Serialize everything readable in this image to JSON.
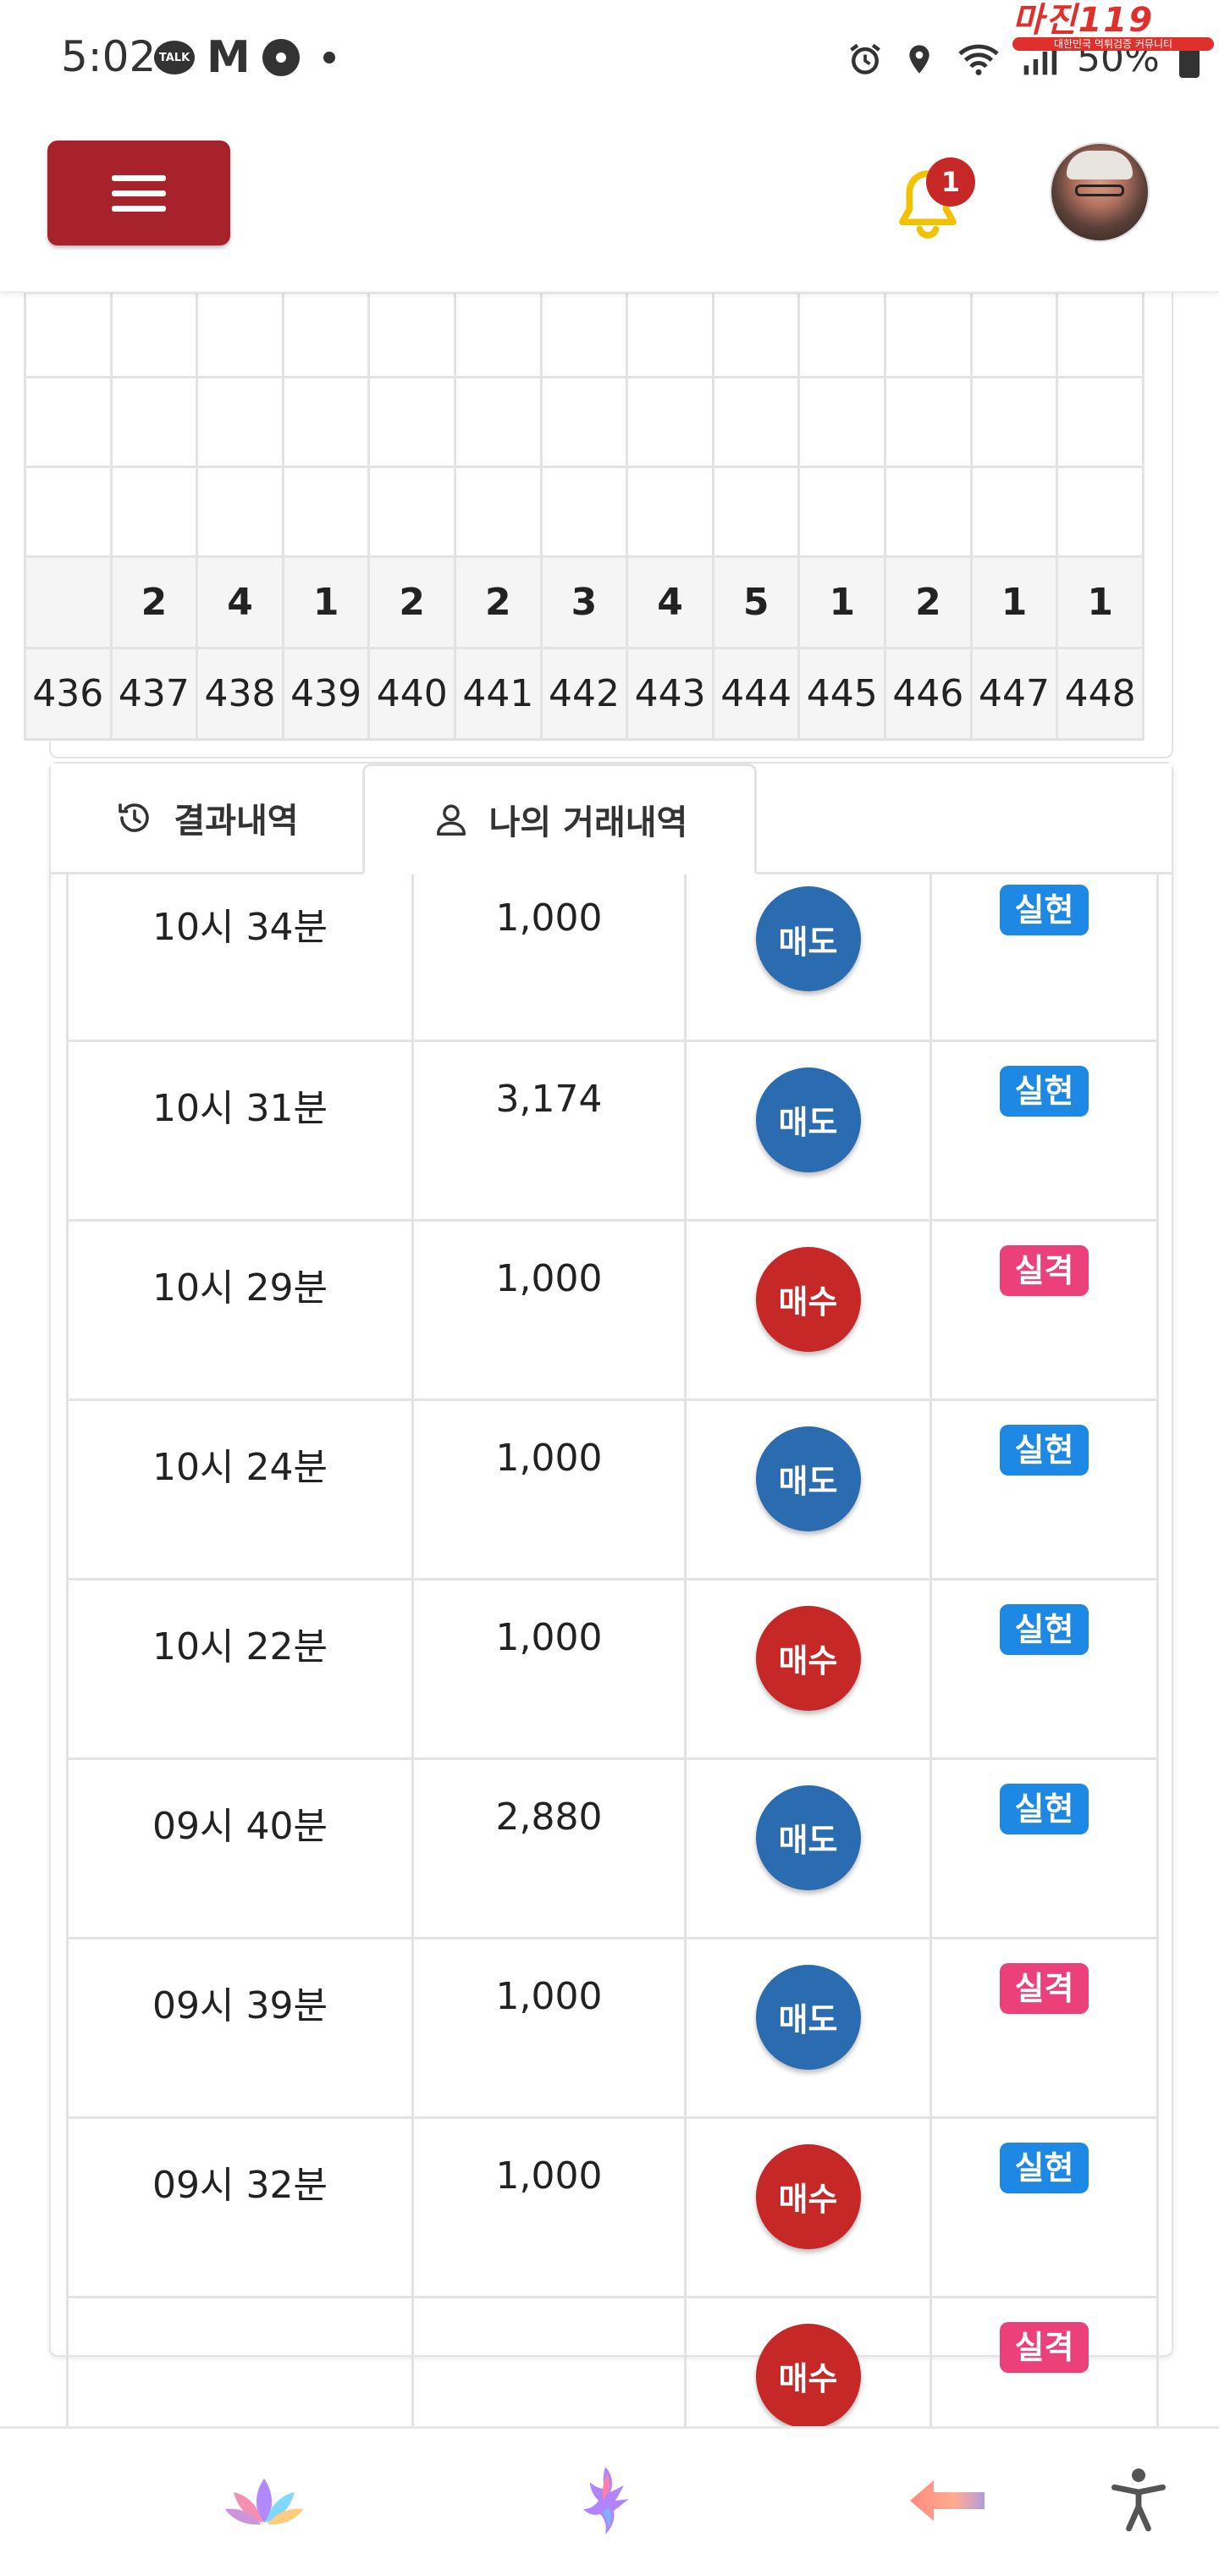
{
  "status_bar": {
    "time": "5:02",
    "talk_label": "TALK",
    "mail_letter": "M",
    "battery": "50%",
    "left_icons": [
      "kakaotalk-icon",
      "gmail-icon",
      "fan-icon",
      "dot-icon"
    ],
    "right_icons": [
      "alarm-icon",
      "location-icon",
      "wifi-icon",
      "signal-icon",
      "battery-icon"
    ]
  },
  "watermark": {
    "title": "마진119",
    "subtitle": "대한민국 먹튀검증 커뮤니티"
  },
  "header": {
    "notification_count": "1",
    "accent_color": "#a7222a"
  },
  "history": {
    "digits": [
      "",
      "2",
      "4",
      "1",
      "2",
      "2",
      "3",
      "4",
      "5",
      "1",
      "2",
      "1",
      "1"
    ],
    "rounds": [
      "436",
      "437",
      "438",
      "439",
      "440",
      "441",
      "442",
      "443",
      "444",
      "445",
      "446",
      "447",
      "448"
    ]
  },
  "tabs": [
    {
      "label": "결과내역",
      "icon": "history-icon",
      "active": false
    },
    {
      "label": "나의 거래내역",
      "icon": "user-icon",
      "active": true
    }
  ],
  "trades": [
    {
      "time": "10시 34분",
      "amount": "1,000",
      "type": "매도",
      "type_kind": "sell",
      "result": "실현",
      "result_kind": "win"
    },
    {
      "time": "10시 31분",
      "amount": "3,174",
      "type": "매도",
      "type_kind": "sell",
      "result": "실현",
      "result_kind": "win"
    },
    {
      "time": "10시 29분",
      "amount": "1,000",
      "type": "매수",
      "type_kind": "buy",
      "result": "실격",
      "result_kind": "lose"
    },
    {
      "time": "10시 24분",
      "amount": "1,000",
      "type": "매도",
      "type_kind": "sell",
      "result": "실현",
      "result_kind": "win"
    },
    {
      "time": "10시 22분",
      "amount": "1,000",
      "type": "매수",
      "type_kind": "buy",
      "result": "실현",
      "result_kind": "win"
    },
    {
      "time": "09시 40분",
      "amount": "2,880",
      "type": "매도",
      "type_kind": "sell",
      "result": "실현",
      "result_kind": "win"
    },
    {
      "time": "09시 39분",
      "amount": "1,000",
      "type": "매도",
      "type_kind": "sell",
      "result": "실격",
      "result_kind": "lose"
    },
    {
      "time": "09시 32분",
      "amount": "1,000",
      "type": "매수",
      "type_kind": "buy",
      "result": "실현",
      "result_kind": "win"
    },
    {
      "time": "",
      "amount": "",
      "type": "매수",
      "type_kind": "buy",
      "result": "실격",
      "result_kind": "lose"
    }
  ],
  "colors": {
    "sell": "#2b6cb0",
    "buy": "#c62828",
    "win": "#1e88e5",
    "lose": "#ec407a"
  },
  "bottom_nav": [
    "lotus-icon",
    "phoenix-icon",
    "back-arrow-icon",
    "accessibility-icon"
  ]
}
